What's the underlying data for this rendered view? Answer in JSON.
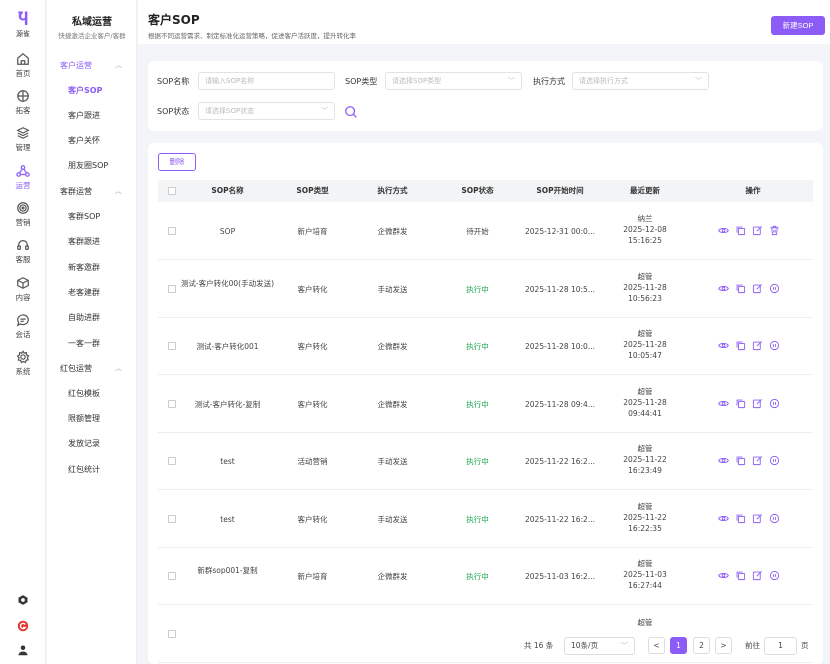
{
  "brand": {
    "name": "源雀"
  },
  "rail": [
    {
      "label": "首页",
      "icon": "home-icon"
    },
    {
      "label": "拓客",
      "icon": "compass-icon"
    },
    {
      "label": "管理",
      "icon": "layers-icon"
    },
    {
      "label": "运营",
      "icon": "share-icon",
      "active": true
    },
    {
      "label": "营销",
      "icon": "target-icon"
    },
    {
      "label": "客服",
      "icon": "headset-icon"
    },
    {
      "label": "内容",
      "icon": "box-icon"
    },
    {
      "label": "会话",
      "icon": "chat-icon"
    },
    {
      "label": "系统",
      "icon": "gear-icon"
    }
  ],
  "sidebar": {
    "title": "私域运营",
    "subtitle": "快捷激活企业客户/客群",
    "groups": [
      {
        "label": "客户运营",
        "items": [
          "客户SOP",
          "客户跟进",
          "客户关怀",
          "朋友圈SOP"
        ]
      },
      {
        "label": "客群运营",
        "items": [
          "客群SOP",
          "客群跟进",
          "新客邀群",
          "老客建群",
          "自助进群",
          "一客一群"
        ]
      },
      {
        "label": "红包运营",
        "items": [
          "红包模板",
          "限额管理",
          "发放记录",
          "红包统计"
        ]
      }
    ]
  },
  "header": {
    "title": "客户SOP",
    "desc": "根据不同运营需求、制定标准化运营策略，促进客户活跃度，提升转化率",
    "new_label": "新建SOP"
  },
  "filter": {
    "name_label": "SOP名称",
    "name_placeholder": "请输入SOP名称",
    "type_label": "SOP类型",
    "type_placeholder": "请选择SOP类型",
    "exec_label": "执行方式",
    "exec_placeholder": "请选择执行方式",
    "status_label": "SOP状态",
    "status_placeholder": "请选择SOP状态"
  },
  "table": {
    "delete_label": "删除",
    "columns": [
      "SOP名称",
      "SOP类型",
      "执行方式",
      "SOP状态",
      "SOP开始时间",
      "最近更新",
      "操作"
    ],
    "rows": [
      {
        "name": "SOP",
        "type": "新户培育",
        "exec": "企微群发",
        "status": "待开始",
        "start": "2025-12-31 00:0...",
        "user": "纳兰",
        "date": "2025-12-08",
        "time": "15:16:25"
      },
      {
        "name": "测试-客户转化00(手动发送)",
        "type": "客户转化",
        "exec": "手动发送",
        "status": "执行中",
        "start": "2025-11-28 10:5...",
        "user": "超管",
        "date": "2025-11-28",
        "time": "10:56:23"
      },
      {
        "name": "测试-客户转化001",
        "type": "客户转化",
        "exec": "企微群发",
        "status": "执行中",
        "start": "2025-11-28 10:0...",
        "user": "超管",
        "date": "2025-11-28",
        "time": "10:05:47"
      },
      {
        "name": "测试-客户转化-复制",
        "type": "客户转化",
        "exec": "企微群发",
        "status": "执行中",
        "start": "2025-11-28 09:4...",
        "user": "超管",
        "date": "2025-11-28",
        "time": "09:44:41"
      },
      {
        "name": "test",
        "type": "活动营销",
        "exec": "手动发送",
        "status": "执行中",
        "start": "2025-11-22 16:2...",
        "user": "超管",
        "date": "2025-11-22",
        "time": "16:23:49"
      },
      {
        "name": "test",
        "type": "客户转化",
        "exec": "手动发送",
        "status": "执行中",
        "start": "2025-11-22 16:2...",
        "user": "超管",
        "date": "2025-11-22",
        "time": "16:22:35"
      },
      {
        "name": "新群sop001-复制",
        "type": "新户培育",
        "exec": "企微群发",
        "status": "执行中",
        "start": "2025-11-03 16:2...",
        "user": "超管",
        "date": "2025-11-03",
        "time": "16:27:44"
      },
      {
        "name": "",
        "type": "",
        "exec": "",
        "status": "",
        "start": "",
        "user": "超管",
        "date": "",
        "time": ""
      }
    ]
  },
  "pager": {
    "total": "共 16 条",
    "size": "10条/页",
    "pages": [
      "1",
      "2"
    ],
    "prev": "<",
    "next": ">",
    "goto": "前往",
    "page_value": "1",
    "page_unit": "页"
  },
  "colors": {
    "accent": "#8b5cf6",
    "running": "#16a34a"
  }
}
